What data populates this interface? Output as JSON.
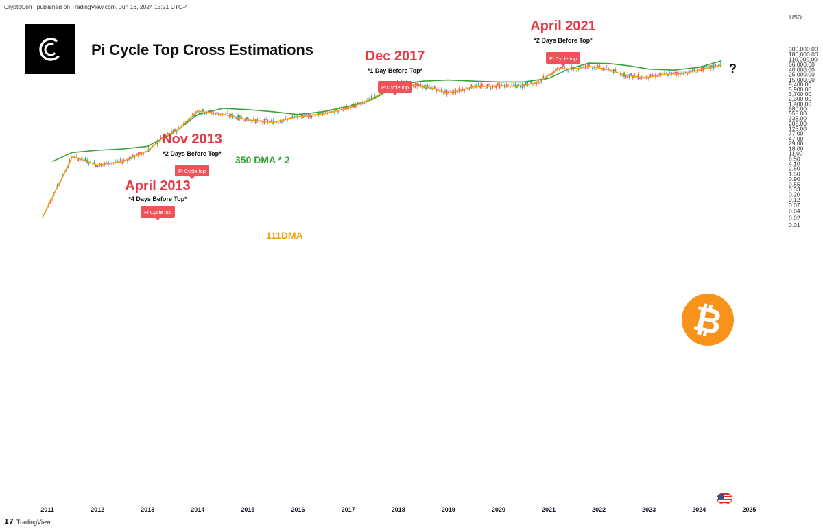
{
  "attribution": "CryptoCon_ published on TradingView.com, Jun 16, 2024 13:21 UTC-4",
  "currency": "USD",
  "title": "Pi Cycle Top Cross Estimations",
  "footer": {
    "brand": "TradingView"
  },
  "colors": {
    "up_candle": "#26a69a",
    "down_candle": "#ef5350",
    "dma_111": "#f59e0b",
    "dma_350x2": "#3aa23a",
    "callout_red": "#e53945",
    "pi_tag_bg": "#f0525a",
    "bitcoin_orange": "#f7931a"
  },
  "icons": {
    "logo": "cryptocon-logo-icon",
    "bitcoin": "bitcoin-icon",
    "flag": "us-flag-icon"
  },
  "chart_data": {
    "type": "line",
    "y_scale": "log",
    "y_tick_labels": [
      "300,000.00",
      "180,000.00",
      "110,000.00",
      "66,000.00",
      "40,000.00",
      "25,000.00",
      "15,000.00",
      "9,400.00",
      "5,900.00",
      "3,700.00",
      "2,300.00",
      "1,400.00",
      "880.00",
      "555.00",
      "335.00",
      "205.00",
      "125.00",
      "77.00",
      "47.00",
      "29.00",
      "18.00",
      "11.00",
      "6.50",
      "4.10",
      "2.50",
      "1.50",
      "0.90",
      "0.55",
      "0.33",
      "0.20",
      "0.12",
      "0.07",
      "0.04",
      "0.02",
      "0.01"
    ],
    "x_tick_labels": [
      "2011",
      "2012",
      "2013",
      "2014",
      "2015",
      "2016",
      "2017",
      "2018",
      "2019",
      "2020",
      "2021",
      "2022",
      "2023",
      "2024",
      "2025"
    ],
    "ylim": [
      0.006,
      350000
    ],
    "series": [
      {
        "name": "350 DMA * 2",
        "x": [
          2011.1,
          2011.5,
          2012.0,
          2012.5,
          2013.0,
          2013.5,
          2014.0,
          2014.5,
          2015.0,
          2015.5,
          2016.0,
          2016.5,
          2017.0,
          2017.5,
          2018.0,
          2018.5,
          2019.0,
          2019.5,
          2020.0,
          2020.5,
          2021.0,
          2021.4,
          2021.8,
          2022.2,
          2022.6,
          2023.0,
          2023.5,
          2024.0,
          2024.45
        ],
        "y": [
          5,
          12,
          15,
          17,
          22,
          80,
          500,
          900,
          800,
          650,
          500,
          650,
          1100,
          2200,
          9500,
          13000,
          14500,
          13000,
          12000,
          12000,
          17000,
          42000,
          75000,
          72000,
          58000,
          42000,
          38000,
          50000,
          95000
        ]
      },
      {
        "name": "111DMA",
        "x": [
          2010.9,
          2011.2,
          2011.5,
          2011.7,
          2012.0,
          2012.5,
          2013.0,
          2013.3,
          2013.6,
          2014.0,
          2014.3,
          2014.6,
          2015.0,
          2015.5,
          2016.0,
          2016.5,
          2017.0,
          2017.5,
          2018.0,
          2018.3,
          2018.7,
          2019.0,
          2019.5,
          2020.0,
          2020.4,
          2020.8,
          2021.2,
          2021.5,
          2021.8,
          2022.2,
          2022.5,
          2022.9,
          2023.3,
          2023.7,
          2024.0,
          2024.45
        ],
        "y": [
          0.02,
          0.4,
          8,
          6,
          3.5,
          5,
          14,
          50,
          110,
          700,
          580,
          460,
          290,
          230,
          400,
          530,
          900,
          2400,
          12000,
          8700,
          6400,
          4000,
          7500,
          8100,
          7800,
          11500,
          45000,
          42000,
          55000,
          40000,
          24000,
          18000,
          25000,
          28000,
          38000,
          64000
        ]
      }
    ],
    "annotations": [
      {
        "label": "April 2013",
        "note": "*4 Days Before Top*",
        "tag": "Pi Cycle top"
      },
      {
        "label": "Nov 2013",
        "note": "*2 Days Before Top*",
        "tag": "Pi Cycle top"
      },
      {
        "label": "Dec 2017",
        "note": "*1 Day Before Top*",
        "tag": "Pi Cycle top"
      },
      {
        "label": "April 2021",
        "note": "*2 Days Before Top*",
        "tag": "Pi Cycle top"
      }
    ],
    "question_mark": "?",
    "grid": false,
    "legend": "none"
  }
}
